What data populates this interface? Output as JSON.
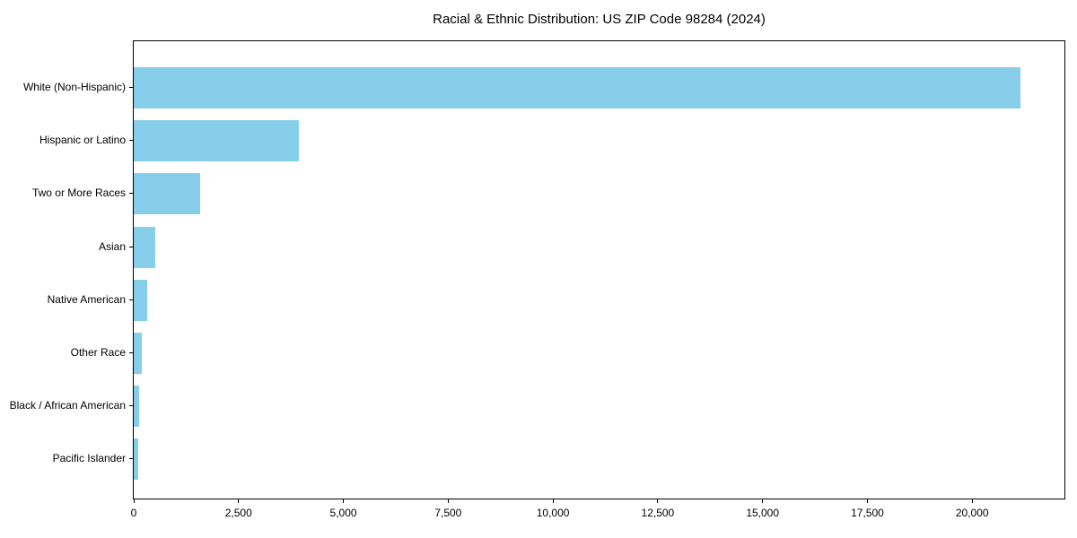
{
  "chart_data": {
    "type": "bar",
    "orientation": "horizontal",
    "title": "Racial & Ethnic Distribution: US ZIP Code 98284 (2024)",
    "categories": [
      "White (Non-Hispanic)",
      "Hispanic or Latino",
      "Two or More Races",
      "Asian",
      "Native American",
      "Other Race",
      "Black / African American",
      "Pacific Islander"
    ],
    "values": [
      21150,
      3930,
      1580,
      510,
      320,
      195,
      125,
      105
    ],
    "bar_color": "#87CEEB",
    "axis_color": "#000000",
    "background_color": "#ffffff",
    "xlabel": "",
    "ylabel": "",
    "xlim": [
      0,
      22200
    ],
    "xticks": [
      {
        "value": 0,
        "label": "0"
      },
      {
        "value": 2500,
        "label": "2,500"
      },
      {
        "value": 5000,
        "label": "5,000"
      },
      {
        "value": 7500,
        "label": "7,500"
      },
      {
        "value": 10000,
        "label": "10,000"
      },
      {
        "value": 12500,
        "label": "12,500"
      },
      {
        "value": 15000,
        "label": "15,000"
      },
      {
        "value": 17500,
        "label": "17,500"
      },
      {
        "value": 20000,
        "label": "20,000"
      }
    ],
    "grid": false,
    "legend_position": "none"
  }
}
